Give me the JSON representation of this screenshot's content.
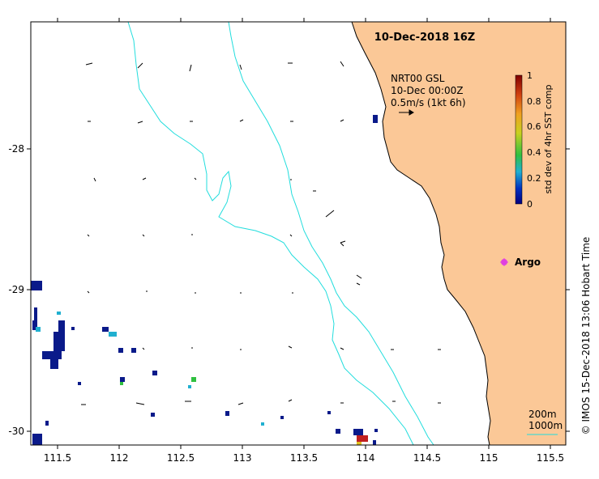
{
  "map": {
    "title": "10-Dec-2018 16Z",
    "credit": "©  IMOS 15-Dec-2018 13:06 Hobart Time",
    "x_ticks": [
      "111.5",
      "112",
      "112.5",
      "113",
      "113.5",
      "114",
      "114.5",
      "115",
      "115.5"
    ],
    "y_ticks": [
      "-28",
      "-29",
      "-30"
    ],
    "legend": {
      "line1": "NRT00 GSL",
      "line2": "10-Dec 00:00Z",
      "line3": "0.5m/s (1kt 6h)"
    },
    "colorbar": {
      "label": "std dev of 4hr SST comp",
      "ticks": [
        "1",
        "0.8",
        "0.6",
        "0.4",
        "0.2",
        "0"
      ]
    },
    "argo_label": "Argo",
    "depth_contours": {
      "line1": "200m",
      "line2": "1000m"
    },
    "colors": {
      "land": "#fbc897",
      "bathymetry": "#22dddd",
      "argo": "#e040e0",
      "sst_low": "#0a1a8a",
      "sst_mid": "#20b0d0",
      "sst_high": "#c02020"
    }
  }
}
